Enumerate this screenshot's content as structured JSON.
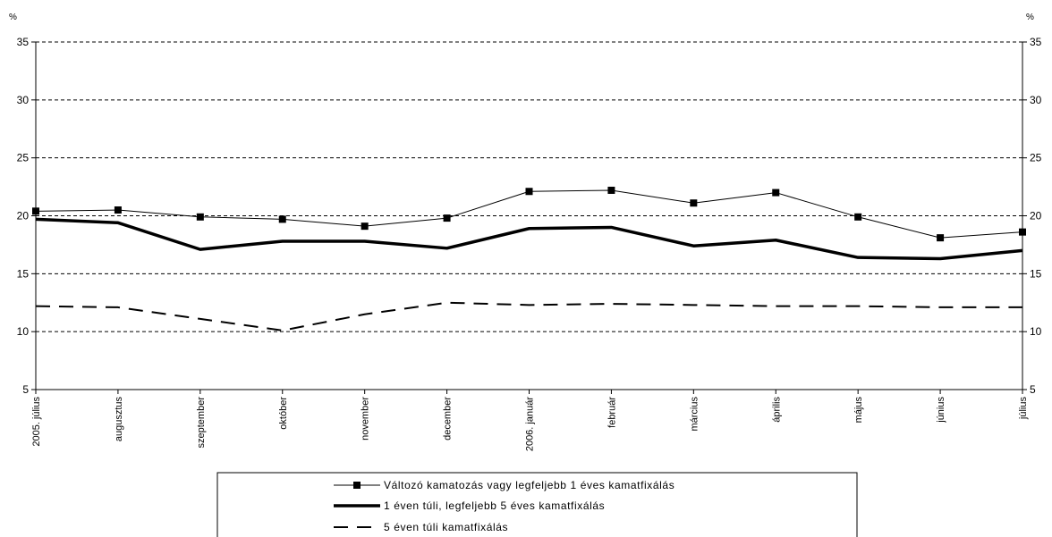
{
  "chart_data": {
    "type": "line",
    "title": "",
    "y_unit_left": "%",
    "y_unit_right": "%",
    "ylim": [
      5,
      35
    ],
    "yticks": [
      "5",
      "10",
      "15",
      "20",
      "25",
      "30",
      "35"
    ],
    "categories": [
      "2005. július",
      "augusztus",
      "szeptember",
      "október",
      "november",
      "december",
      "2006. január",
      "február",
      "március",
      "április",
      "május",
      "június",
      "július"
    ],
    "grid": "horizontal dashed",
    "legend_position": "bottom",
    "series": [
      {
        "name": "Változó kamatozás vagy legfeljebb 1 éves kamatfixálás",
        "style": "thin solid with square markers",
        "color": "#000000",
        "values": [
          20.4,
          20.5,
          19.9,
          19.7,
          19.1,
          19.8,
          22.1,
          22.2,
          21.1,
          22.0,
          19.9,
          18.1,
          18.6
        ]
      },
      {
        "name": "1 éven túli, legfeljebb 5 éves kamatfixálás",
        "style": "thick solid",
        "color": "#000000",
        "values": [
          19.7,
          19.4,
          17.1,
          17.8,
          17.8,
          17.2,
          18.9,
          19.0,
          17.4,
          17.9,
          16.4,
          16.3,
          17.0
        ]
      },
      {
        "name": "5 éven túli kamatfixálás",
        "style": "dashed",
        "color": "#000000",
        "values": [
          12.2,
          12.1,
          11.1,
          10.1,
          11.5,
          12.5,
          12.3,
          12.4,
          12.3,
          12.2,
          12.2,
          12.1,
          12.1
        ]
      }
    ]
  }
}
